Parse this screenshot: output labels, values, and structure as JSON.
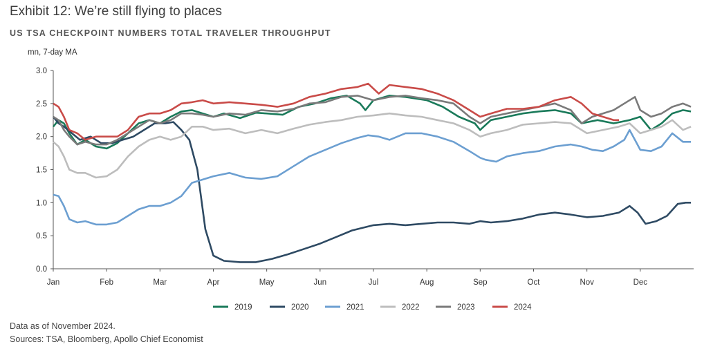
{
  "header": {
    "title": "Exhibit 12: We’re still flying to places",
    "subtitle": "US TSA CHECKPOINT NUMBERS TOTAL TRAVELER THROUGHPUT"
  },
  "footer": {
    "note": "Data as of November 2024.",
    "sources": "Sources: TSA, Bloomberg, Apollo Chief Economist"
  },
  "chart_data": {
    "type": "line",
    "title": "Exhibit 12: We’re still flying to places",
    "subtitle": "US TSA CHECKPOINT NUMBERS TOTAL TRAVELER THROUGHPUT",
    "ylabel": "mn, 7-day MA",
    "ylim": [
      0,
      3
    ],
    "yticks": [
      "0.0",
      "0.5",
      "1.0",
      "1.5",
      "2.0",
      "2.5",
      "3.0"
    ],
    "xlim": [
      0,
      12
    ],
    "xticks": [
      "Jan",
      "Feb",
      "Mar",
      "Apr",
      "May",
      "Jun",
      "Jul",
      "Aug",
      "Sep",
      "Oct",
      "Nov",
      "Dec"
    ],
    "grid": false,
    "legend_position": "bottom",
    "series": [
      {
        "name": "2019",
        "color": "#1a7a5a",
        "x": [
          0,
          0.1,
          0.2,
          0.3,
          0.45,
          0.6,
          0.8,
          1.0,
          1.2,
          1.4,
          1.6,
          1.8,
          2.0,
          2.2,
          2.4,
          2.6,
          2.8,
          3.0,
          3.2,
          3.5,
          3.8,
          4.0,
          4.3,
          4.6,
          4.9,
          5.2,
          5.5,
          5.75,
          5.85,
          6.0,
          6.3,
          6.6,
          7.0,
          7.3,
          7.6,
          7.9,
          8.0,
          8.2,
          8.5,
          8.8,
          9.1,
          9.4,
          9.7,
          9.9,
          10.2,
          10.5,
          10.8,
          11.0,
          11.2,
          11.4,
          11.6,
          11.8,
          11.95
        ],
        "y": [
          2.15,
          2.25,
          2.2,
          2.05,
          1.88,
          1.95,
          1.85,
          1.82,
          1.9,
          2.05,
          2.2,
          2.25,
          2.2,
          2.3,
          2.38,
          2.4,
          2.35,
          2.3,
          2.35,
          2.28,
          2.36,
          2.35,
          2.33,
          2.45,
          2.5,
          2.58,
          2.62,
          2.5,
          2.4,
          2.55,
          2.62,
          2.6,
          2.55,
          2.45,
          2.3,
          2.2,
          2.1,
          2.25,
          2.3,
          2.35,
          2.38,
          2.4,
          2.35,
          2.2,
          2.25,
          2.2,
          2.25,
          2.3,
          2.1,
          2.2,
          2.35,
          2.4,
          2.38
        ]
      },
      {
        "name": "2020",
        "color": "#2e4a63",
        "x": [
          0,
          0.1,
          0.2,
          0.35,
          0.5,
          0.7,
          0.9,
          1.1,
          1.3,
          1.5,
          1.7,
          1.9,
          2.1,
          2.25,
          2.4,
          2.55,
          2.7,
          2.85,
          3.0,
          3.2,
          3.5,
          3.8,
          4.1,
          4.4,
          4.7,
          5.0,
          5.3,
          5.6,
          6.0,
          6.3,
          6.6,
          6.9,
          7.2,
          7.5,
          7.8,
          8.0,
          8.2,
          8.5,
          8.8,
          9.1,
          9.4,
          9.7,
          10.0,
          10.3,
          10.6,
          10.8,
          10.95,
          11.1,
          11.3,
          11.5,
          11.7,
          11.85,
          11.95
        ],
        "y": [
          2.3,
          2.2,
          2.15,
          2.05,
          1.95,
          2.0,
          1.9,
          1.9,
          1.95,
          2.0,
          2.1,
          2.2,
          2.2,
          2.22,
          2.1,
          1.95,
          1.5,
          0.6,
          0.2,
          0.12,
          0.1,
          0.1,
          0.15,
          0.22,
          0.3,
          0.38,
          0.48,
          0.58,
          0.66,
          0.68,
          0.66,
          0.68,
          0.7,
          0.7,
          0.68,
          0.72,
          0.7,
          0.72,
          0.76,
          0.82,
          0.85,
          0.82,
          0.78,
          0.8,
          0.85,
          0.95,
          0.85,
          0.68,
          0.72,
          0.8,
          0.98,
          1.0,
          1.0
        ]
      },
      {
        "name": "2021",
        "color": "#6c9fd1",
        "x": [
          0,
          0.1,
          0.2,
          0.3,
          0.45,
          0.6,
          0.8,
          1.0,
          1.2,
          1.4,
          1.6,
          1.8,
          2.0,
          2.2,
          2.4,
          2.6,
          2.8,
          3.0,
          3.3,
          3.6,
          3.9,
          4.2,
          4.5,
          4.8,
          5.1,
          5.4,
          5.7,
          5.9,
          6.1,
          6.3,
          6.6,
          6.9,
          7.2,
          7.5,
          7.8,
          8.0,
          8.1,
          8.3,
          8.5,
          8.8,
          9.1,
          9.4,
          9.7,
          9.9,
          10.1,
          10.3,
          10.5,
          10.7,
          10.8,
          10.9,
          11.0,
          11.2,
          11.4,
          11.6,
          11.8,
          11.95
        ],
        "y": [
          1.12,
          1.1,
          0.95,
          0.75,
          0.7,
          0.72,
          0.67,
          0.67,
          0.7,
          0.8,
          0.9,
          0.95,
          0.95,
          1.0,
          1.1,
          1.3,
          1.35,
          1.4,
          1.45,
          1.38,
          1.36,
          1.4,
          1.55,
          1.7,
          1.8,
          1.9,
          1.98,
          2.02,
          2.0,
          1.95,
          2.05,
          2.05,
          2.0,
          1.92,
          1.78,
          1.68,
          1.65,
          1.62,
          1.7,
          1.75,
          1.78,
          1.85,
          1.88,
          1.85,
          1.8,
          1.78,
          1.85,
          1.95,
          2.1,
          1.95,
          1.8,
          1.78,
          1.85,
          2.05,
          1.92,
          1.92
        ]
      },
      {
        "name": "2022",
        "color": "#bdbdbd",
        "x": [
          0,
          0.1,
          0.2,
          0.3,
          0.45,
          0.6,
          0.8,
          1.0,
          1.2,
          1.4,
          1.6,
          1.8,
          2.0,
          2.2,
          2.4,
          2.6,
          2.8,
          3.0,
          3.3,
          3.6,
          3.9,
          4.2,
          4.5,
          4.8,
          5.1,
          5.4,
          5.7,
          6.0,
          6.3,
          6.6,
          6.9,
          7.2,
          7.5,
          7.8,
          8.0,
          8.2,
          8.5,
          8.8,
          9.1,
          9.4,
          9.7,
          10.0,
          10.3,
          10.6,
          10.8,
          11.0,
          11.2,
          11.4,
          11.6,
          11.8,
          11.95
        ],
        "y": [
          1.92,
          1.85,
          1.7,
          1.5,
          1.45,
          1.45,
          1.38,
          1.4,
          1.5,
          1.7,
          1.85,
          1.95,
          2.0,
          1.95,
          2.0,
          2.15,
          2.15,
          2.1,
          2.12,
          2.05,
          2.1,
          2.05,
          2.12,
          2.18,
          2.22,
          2.25,
          2.3,
          2.32,
          2.35,
          2.32,
          2.3,
          2.25,
          2.2,
          2.1,
          2.0,
          2.05,
          2.1,
          2.18,
          2.2,
          2.22,
          2.2,
          2.05,
          2.1,
          2.15,
          2.2,
          2.05,
          2.1,
          2.15,
          2.25,
          2.1,
          2.15
        ]
      },
      {
        "name": "2023",
        "color": "#7a7a7a",
        "x": [
          0,
          0.1,
          0.2,
          0.3,
          0.45,
          0.6,
          0.8,
          1.0,
          1.2,
          1.4,
          1.6,
          1.8,
          2.0,
          2.2,
          2.4,
          2.6,
          2.8,
          3.0,
          3.3,
          3.6,
          3.9,
          4.2,
          4.5,
          4.8,
          5.1,
          5.4,
          5.7,
          6.0,
          6.3,
          6.6,
          6.9,
          7.2,
          7.5,
          7.8,
          8.0,
          8.2,
          8.5,
          8.8,
          9.1,
          9.4,
          9.7,
          9.9,
          10.1,
          10.3,
          10.5,
          10.7,
          10.9,
          11.0,
          11.2,
          11.4,
          11.6,
          11.8,
          11.95
        ],
        "y": [
          2.3,
          2.25,
          2.1,
          2.0,
          1.88,
          1.92,
          1.88,
          1.88,
          1.95,
          2.05,
          2.15,
          2.25,
          2.2,
          2.25,
          2.35,
          2.35,
          2.33,
          2.3,
          2.35,
          2.33,
          2.4,
          2.38,
          2.42,
          2.5,
          2.52,
          2.6,
          2.62,
          2.55,
          2.6,
          2.62,
          2.58,
          2.55,
          2.5,
          2.3,
          2.2,
          2.3,
          2.35,
          2.4,
          2.45,
          2.5,
          2.4,
          2.2,
          2.3,
          2.35,
          2.4,
          2.5,
          2.6,
          2.4,
          2.3,
          2.35,
          2.45,
          2.5,
          2.45
        ]
      },
      {
        "name": "2024",
        "color": "#c94b48",
        "x": [
          0,
          0.1,
          0.2,
          0.3,
          0.45,
          0.6,
          0.8,
          1.0,
          1.2,
          1.4,
          1.6,
          1.8,
          2.0,
          2.2,
          2.4,
          2.6,
          2.8,
          3.0,
          3.3,
          3.6,
          3.9,
          4.2,
          4.5,
          4.8,
          5.1,
          5.4,
          5.7,
          5.9,
          6.1,
          6.3,
          6.6,
          6.9,
          7.2,
          7.5,
          7.8,
          8.0,
          8.2,
          8.5,
          8.8,
          9.1,
          9.4,
          9.7,
          9.9,
          10.1,
          10.3,
          10.5,
          10.6
        ],
        "y": [
          2.5,
          2.45,
          2.3,
          2.1,
          2.05,
          1.95,
          2.0,
          2.0,
          2.0,
          2.1,
          2.3,
          2.35,
          2.35,
          2.4,
          2.5,
          2.52,
          2.55,
          2.5,
          2.52,
          2.5,
          2.48,
          2.45,
          2.5,
          2.6,
          2.65,
          2.72,
          2.75,
          2.8,
          2.65,
          2.78,
          2.75,
          2.72,
          2.65,
          2.55,
          2.4,
          2.3,
          2.35,
          2.42,
          2.42,
          2.45,
          2.55,
          2.6,
          2.5,
          2.35,
          2.3,
          2.25,
          2.25
        ]
      }
    ]
  }
}
